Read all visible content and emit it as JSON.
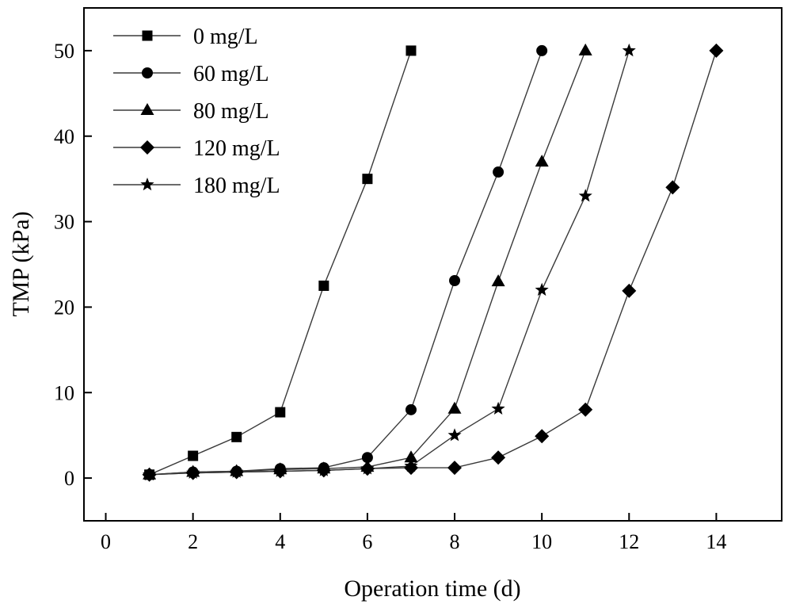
{
  "chart_data": {
    "type": "line",
    "xlabel": "Operation time (d)",
    "ylabel": "TMP (kPa)",
    "xlim": [
      -0.5,
      15.5
    ],
    "ylim": [
      -5,
      55
    ],
    "xticks": [
      0,
      2,
      4,
      6,
      8,
      10,
      12,
      14
    ],
    "yticks": [
      0,
      10,
      20,
      30,
      40,
      50
    ],
    "grid": false,
    "legend": "top-left",
    "series": [
      {
        "name": "0 mg/L",
        "marker": "square",
        "x": [
          1,
          2,
          3,
          4,
          5,
          6,
          7
        ],
        "y": [
          0.4,
          2.6,
          4.8,
          7.7,
          22.5,
          35,
          50
        ]
      },
      {
        "name": "60 mg/L",
        "marker": "circle",
        "x": [
          1,
          2,
          3,
          4,
          5,
          6,
          7,
          8,
          9,
          10
        ],
        "y": [
          0.4,
          0.7,
          0.8,
          1.1,
          1.2,
          2.4,
          8.0,
          23.1,
          35.8,
          50
        ]
      },
      {
        "name": "80 mg/L",
        "marker": "triangle",
        "x": [
          1,
          2,
          3,
          4,
          5,
          6,
          7,
          8,
          9,
          10,
          11
        ],
        "y": [
          0.4,
          0.7,
          0.8,
          1.0,
          1.1,
          1.3,
          2.4,
          8.1,
          23.0,
          37.0,
          50
        ]
      },
      {
        "name": "120 mg/L",
        "marker": "diamond",
        "x": [
          1,
          2,
          3,
          4,
          5,
          6,
          7,
          8,
          9,
          10,
          11,
          12,
          13,
          14
        ],
        "y": [
          0.4,
          0.6,
          0.7,
          0.8,
          0.9,
          1.1,
          1.2,
          1.2,
          2.4,
          4.9,
          8.0,
          21.9,
          34.0,
          50
        ]
      },
      {
        "name": "180 mg/L",
        "marker": "star",
        "x": [
          1,
          2,
          3,
          4,
          5,
          6,
          7,
          8,
          9,
          10,
          11,
          12
        ],
        "y": [
          0.4,
          0.6,
          0.7,
          0.8,
          0.9,
          1.1,
          1.4,
          5.0,
          8.1,
          22.0,
          33.0,
          50
        ]
      }
    ]
  }
}
